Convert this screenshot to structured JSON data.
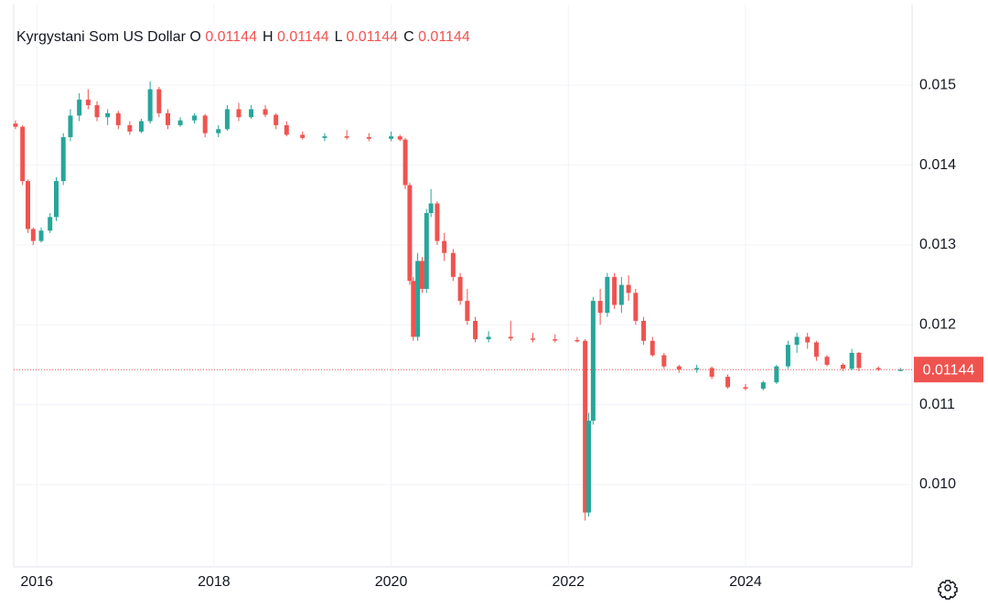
{
  "chart_data": {
    "type": "candlestick",
    "title": "Kyrgystani Som US Dollar",
    "ohlc_summary": {
      "labels": [
        "O",
        "H",
        "L",
        "C"
      ],
      "values": [
        0.01144,
        0.01144,
        0.01144,
        0.01144
      ]
    },
    "last_price": 0.01144,
    "up_color": "#26a69a",
    "down_color": "#ef5350",
    "xlim": [
      2015.74,
      2025.88
    ],
    "xticks": [
      2016,
      2018,
      2020,
      2022,
      2024
    ],
    "ylim": [
      0.00897,
      0.01601
    ],
    "yticks": [
      {
        "value": 0.01,
        "label": "0.010"
      },
      0.011,
      0.012,
      0.013,
      0.014,
      0.015
    ],
    "grid": true,
    "x": [
      2015.76,
      2015.84,
      2015.9,
      2015.96,
      2016.05,
      2016.15,
      2016.22,
      2016.3,
      2016.38,
      2016.48,
      2016.58,
      2016.68,
      2016.8,
      2016.92,
      2017.05,
      2017.18,
      2017.28,
      2017.38,
      2017.48,
      2017.62,
      2017.78,
      2017.9,
      2018.05,
      2018.15,
      2018.28,
      2018.42,
      2018.58,
      2018.7,
      2018.82,
      2019.0,
      2019.25,
      2019.5,
      2019.75,
      2020.0,
      2020.1,
      2020.16,
      2020.21,
      2020.25,
      2020.3,
      2020.35,
      2020.4,
      2020.45,
      2020.52,
      2020.6,
      2020.7,
      2020.78,
      2020.86,
      2020.95,
      2021.1,
      2021.35,
      2021.6,
      2021.85,
      2022.1,
      2022.19,
      2022.23,
      2022.28,
      2022.36,
      2022.44,
      2022.52,
      2022.6,
      2022.68,
      2022.76,
      2022.85,
      2022.95,
      2023.08,
      2023.25,
      2023.45,
      2023.62,
      2023.8,
      2024.0,
      2024.2,
      2024.35,
      2024.48,
      2024.58,
      2024.7,
      2024.8,
      2024.92,
      2025.1,
      2025.2,
      2025.28,
      2025.5,
      2025.75
    ],
    "open": [
      0.01452,
      0.01448,
      0.0138,
      0.0132,
      0.01305,
      0.01318,
      0.01335,
      0.0138,
      0.01435,
      0.01462,
      0.01482,
      0.01475,
      0.0146,
      0.01465,
      0.0145,
      0.01442,
      0.01455,
      0.01495,
      0.01465,
      0.0145,
      0.01456,
      0.01462,
      0.0144,
      0.01445,
      0.0147,
      0.0146,
      0.0147,
      0.01463,
      0.0145,
      0.01438,
      0.01434,
      0.01436,
      0.01435,
      0.01433,
      0.01436,
      0.01432,
      0.01375,
      0.01255,
      0.01185,
      0.0128,
      0.01245,
      0.0134,
      0.01352,
      0.01305,
      0.0129,
      0.0126,
      0.0123,
      0.01205,
      0.01182,
      0.01185,
      0.01183,
      0.01182,
      0.01181,
      0.0118,
      0.00965,
      0.0108,
      0.0123,
      0.01215,
      0.0126,
      0.01225,
      0.0125,
      0.0124,
      0.01205,
      0.0118,
      0.01162,
      0.01148,
      0.01144,
      0.01146,
      0.01135,
      0.01122,
      0.0112,
      0.01128,
      0.01148,
      0.01175,
      0.01185,
      0.01178,
      0.0116,
      0.0115,
      0.01145,
      0.01165,
      0.01146,
      0.01144
    ],
    "high": [
      0.01456,
      0.0145,
      0.01382,
      0.01322,
      0.01322,
      0.0134,
      0.01385,
      0.0144,
      0.0147,
      0.0149,
      0.01495,
      0.0148,
      0.0147,
      0.01468,
      0.01455,
      0.01458,
      0.01505,
      0.01498,
      0.0147,
      0.0146,
      0.01465,
      0.01464,
      0.0145,
      0.01475,
      0.01478,
      0.01475,
      0.01475,
      0.01465,
      0.01455,
      0.01442,
      0.0144,
      0.01444,
      0.0144,
      0.01442,
      0.01438,
      0.01434,
      0.01378,
      0.0126,
      0.0129,
      0.01285,
      0.01345,
      0.0137,
      0.01355,
      0.01315,
      0.01295,
      0.01265,
      0.01245,
      0.0121,
      0.01192,
      0.01205,
      0.0119,
      0.01188,
      0.01185,
      0.01182,
      0.0109,
      0.01235,
      0.01245,
      0.01265,
      0.01265,
      0.0126,
      0.01262,
      0.01245,
      0.0121,
      0.01185,
      0.01165,
      0.0115,
      0.0115,
      0.01148,
      0.01138,
      0.01126,
      0.0113,
      0.0115,
      0.0118,
      0.0119,
      0.0119,
      0.0118,
      0.01162,
      0.01152,
      0.0117,
      0.01166,
      0.01148,
      0.01146
    ],
    "low": [
      0.01445,
      0.01375,
      0.01315,
      0.013,
      0.01303,
      0.01315,
      0.0133,
      0.01375,
      0.0143,
      0.01455,
      0.0147,
      0.01455,
      0.0145,
      0.01445,
      0.01438,
      0.0144,
      0.01452,
      0.0146,
      0.01445,
      0.01448,
      0.01452,
      0.01435,
      0.01435,
      0.01443,
      0.01455,
      0.01458,
      0.0146,
      0.01445,
      0.01436,
      0.01432,
      0.0143,
      0.01432,
      0.0143,
      0.0143,
      0.0143,
      0.0137,
      0.0125,
      0.0118,
      0.0118,
      0.0124,
      0.0124,
      0.01335,
      0.013,
      0.0128,
      0.01255,
      0.01225,
      0.012,
      0.01178,
      0.01178,
      0.0118,
      0.01178,
      0.01178,
      0.01178,
      0.00955,
      0.0096,
      0.01075,
      0.012,
      0.0121,
      0.0122,
      0.01215,
      0.0123,
      0.012,
      0.01175,
      0.0116,
      0.01145,
      0.0114,
      0.0114,
      0.01132,
      0.0112,
      0.01118,
      0.01118,
      0.01126,
      0.01145,
      0.01165,
      0.0117,
      0.01155,
      0.01148,
      0.01142,
      0.01143,
      0.01142,
      0.01142,
      0.01142
    ],
    "close": [
      0.01448,
      0.0138,
      0.0132,
      0.01305,
      0.01318,
      0.01335,
      0.0138,
      0.01435,
      0.01462,
      0.01482,
      0.01475,
      0.0146,
      0.01465,
      0.0145,
      0.01442,
      0.01455,
      0.01495,
      0.01465,
      0.0145,
      0.01456,
      0.01462,
      0.0144,
      0.01445,
      0.0147,
      0.0146,
      0.0147,
      0.01463,
      0.0145,
      0.01438,
      0.01434,
      0.01436,
      0.01435,
      0.01433,
      0.01436,
      0.01432,
      0.01375,
      0.01255,
      0.01185,
      0.0128,
      0.01245,
      0.0134,
      0.01352,
      0.01305,
      0.0129,
      0.0126,
      0.0123,
      0.01205,
      0.01182,
      0.01185,
      0.01183,
      0.01182,
      0.01181,
      0.0118,
      0.00965,
      0.0108,
      0.0123,
      0.01215,
      0.0126,
      0.01225,
      0.0125,
      0.0124,
      0.01205,
      0.0118,
      0.01162,
      0.01148,
      0.01144,
      0.01146,
      0.01135,
      0.01122,
      0.0112,
      0.01128,
      0.01148,
      0.01175,
      0.01185,
      0.01178,
      0.0116,
      0.0115,
      0.01145,
      0.01165,
      0.01146,
      0.01144,
      0.01144
    ]
  }
}
